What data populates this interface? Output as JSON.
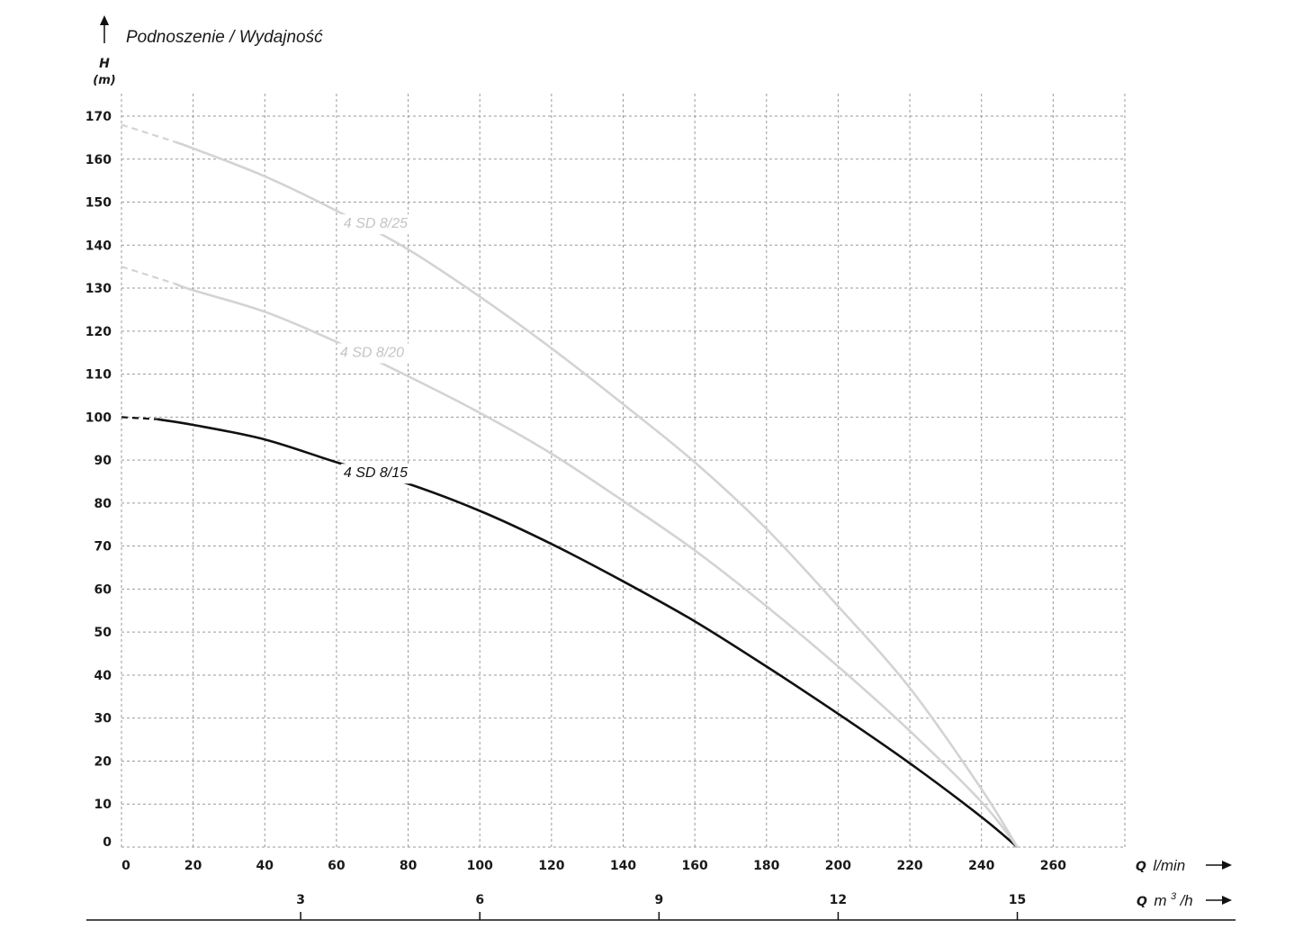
{
  "chart_data": {
    "type": "line",
    "title": "Podnoszenie / Wydajność",
    "ylabel": "H",
    "yunit": "(m)",
    "xlabel": "Q",
    "xunit": "l/min",
    "x2label": "Q",
    "x2unit_prefix": "m",
    "x2unit_sup": "3",
    "x2unit_suffix": "/h",
    "ylim": [
      0,
      175
    ],
    "xlim": [
      0,
      280
    ],
    "grid": true,
    "x_ticks": [
      "0",
      "20",
      "40",
      "60",
      "80",
      "100",
      "120",
      "140",
      "160",
      "180",
      "200",
      "220",
      "240",
      "260"
    ],
    "x_tick_values": [
      0,
      20,
      40,
      60,
      80,
      100,
      120,
      140,
      160,
      180,
      200,
      220,
      240,
      260
    ],
    "y_ticks": [
      "0",
      "10",
      "20",
      "30",
      "40",
      "50",
      "60",
      "70",
      "80",
      "90",
      "100",
      "110",
      "120",
      "130",
      "140",
      "150",
      "160",
      "170"
    ],
    "y_tick_values": [
      0,
      10,
      20,
      30,
      40,
      50,
      60,
      70,
      80,
      90,
      100,
      110,
      120,
      130,
      140,
      150,
      160,
      170
    ],
    "x2_ticks": [
      "3",
      "6",
      "9",
      "12",
      "15"
    ],
    "x2_tick_values": [
      50,
      100,
      150,
      200,
      250
    ],
    "series": [
      {
        "name": "4 SD 8/15",
        "color": "#111111",
        "dashed_until_x": 10,
        "label_at": [
          62,
          86
        ],
        "x": [
          0,
          10,
          20,
          40,
          60,
          80,
          100,
          120,
          140,
          160,
          180,
          200,
          220,
          240,
          250
        ],
        "y": [
          100,
          99.5,
          98.2,
          94.8,
          89.5,
          84.5,
          78.2,
          70.5,
          61.8,
          52.5,
          42,
          31,
          19.5,
          7,
          0
        ]
      },
      {
        "name": "4 SD 8/20",
        "color": "#d3d3d3",
        "dashed_until_x": 15,
        "label_at": [
          61,
          114
        ],
        "x": [
          0,
          15,
          20,
          40,
          60,
          80,
          100,
          120,
          140,
          160,
          180,
          200,
          220,
          240,
          250
        ],
        "y": [
          135,
          131,
          129.5,
          124.5,
          117.5,
          109.5,
          101,
          91.5,
          80.5,
          69,
          56,
          42,
          27,
          10.5,
          0
        ]
      },
      {
        "name": "4 SD 8/25",
        "color": "#d3d3d3",
        "dashed_until_x": 15,
        "label_at": [
          62,
          144
        ],
        "x": [
          0,
          15,
          20,
          40,
          60,
          80,
          100,
          120,
          140,
          160,
          180,
          200,
          220,
          240,
          250
        ],
        "y": [
          168,
          164,
          162.5,
          156,
          148,
          139,
          128,
          116,
          103,
          89.5,
          74,
          56,
          37,
          13.5,
          0
        ]
      }
    ]
  }
}
